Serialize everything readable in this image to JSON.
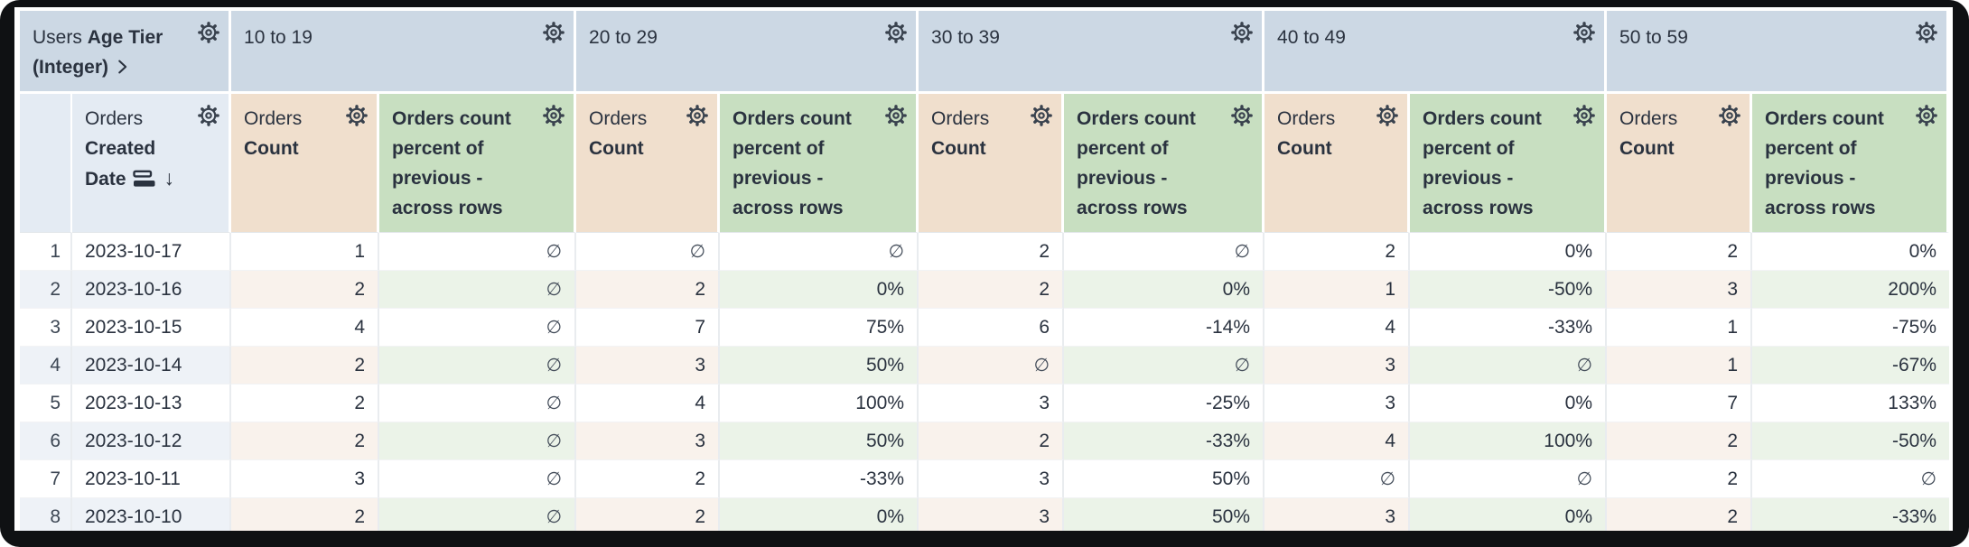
{
  "pivot_field": {
    "label_regular": "Users",
    "label_bold": "Age Tier (Integer)"
  },
  "tiers": [
    {
      "label": "10 to 19"
    },
    {
      "label": "20 to 29"
    },
    {
      "label": "30 to 39"
    },
    {
      "label": "40 to 49"
    },
    {
      "label": "50 to 59"
    }
  ],
  "row_field": {
    "label_regular": "Orders",
    "label_bold": "Created Date"
  },
  "measures": {
    "count_regular": "Orders",
    "count_bold": "Count",
    "percent_label": "Orders count percent of previous - across rows"
  },
  "icons": {
    "sort_desc": "↓",
    "gear": "gear-icon",
    "subtotals": "subtotals-icon",
    "chevron": "chevron-right-icon"
  },
  "null_symbol": "∅",
  "rows": [
    {
      "num": "1",
      "date": "2023-10-17",
      "values": [
        "1",
        "∅",
        "∅",
        "∅",
        "2",
        "∅",
        "2",
        "0%",
        "2",
        "0%"
      ]
    },
    {
      "num": "2",
      "date": "2023-10-16",
      "values": [
        "2",
        "∅",
        "2",
        "0%",
        "2",
        "0%",
        "1",
        "-50%",
        "3",
        "200%"
      ]
    },
    {
      "num": "3",
      "date": "2023-10-15",
      "values": [
        "4",
        "∅",
        "7",
        "75%",
        "6",
        "-14%",
        "4",
        "-33%",
        "1",
        "-75%"
      ]
    },
    {
      "num": "4",
      "date": "2023-10-14",
      "values": [
        "2",
        "∅",
        "3",
        "50%",
        "∅",
        "∅",
        "3",
        "∅",
        "1",
        "-67%"
      ]
    },
    {
      "num": "5",
      "date": "2023-10-13",
      "values": [
        "2",
        "∅",
        "4",
        "100%",
        "3",
        "-25%",
        "3",
        "0%",
        "7",
        "133%"
      ]
    },
    {
      "num": "6",
      "date": "2023-10-12",
      "values": [
        "2",
        "∅",
        "3",
        "50%",
        "2",
        "-33%",
        "4",
        "100%",
        "2",
        "-50%"
      ]
    },
    {
      "num": "7",
      "date": "2023-10-11",
      "values": [
        "3",
        "∅",
        "2",
        "-33%",
        "3",
        "50%",
        "∅",
        "∅",
        "2",
        "∅"
      ]
    },
    {
      "num": "8",
      "date": "2023-10-10",
      "values": [
        "2",
        "∅",
        "2",
        "0%",
        "3",
        "50%",
        "3",
        "0%",
        "2",
        "-33%"
      ]
    }
  ],
  "colors": {
    "tier_header_bg": "#ccd8e4",
    "date_header_bg": "#e4ebf3",
    "count_header_bg": "#f0dfcd",
    "percent_header_bg": "#c8dfc1",
    "count_row_tint": "#f9f2ec",
    "percent_row_tint": "#ebf3e8",
    "row_tint": "#eef2f7",
    "text": "#2a323f",
    "frame": "#0f1113"
  }
}
